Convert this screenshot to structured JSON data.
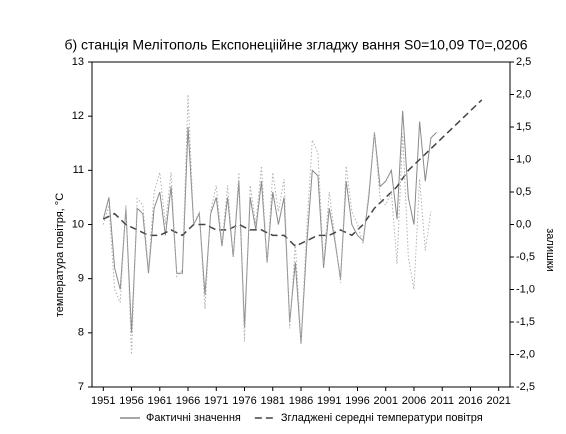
{
  "chart_data": {
    "type": "line",
    "title": "б) станція Мелітополь Експонеціійне згладжу вання   S0=10,09 T0=,0206",
    "ylabel": "температура повітря, °С",
    "y2label": "залишки",
    "xlim": [
      1949,
      2023
    ],
    "xticks": [
      1951,
      1956,
      1961,
      1966,
      1971,
      1976,
      1981,
      1986,
      1991,
      1996,
      2001,
      2006,
      2011,
      2016,
      2021
    ],
    "ylim": [
      7,
      13
    ],
    "yticks": [
      7,
      8,
      9,
      10,
      11,
      12,
      13
    ],
    "y2lim": [
      -2.5,
      2.5
    ],
    "y2ticks": [
      {
        "value": -2.5,
        "label": "-2,5"
      },
      {
        "value": -2,
        "label": "-2,0"
      },
      {
        "value": -1.5,
        "label": "-1,5"
      },
      {
        "value": -1,
        "label": "-1,0"
      },
      {
        "value": -0.5,
        "label": "-0,5"
      },
      {
        "value": 0,
        "label": "0,0"
      },
      {
        "value": 0.5,
        "label": "0,5"
      },
      {
        "value": 1,
        "label": "1,0"
      },
      {
        "value": 1.5,
        "label": "1,5"
      },
      {
        "value": 2,
        "label": "2,0"
      },
      {
        "value": 2.5,
        "label": "2,5"
      }
    ],
    "legend": "bottom",
    "series": [
      {
        "name": "Фактичні значення",
        "color": "#8a8a8a",
        "style": "solid",
        "x": [
          1951,
          1952,
          1953,
          1954,
          1955,
          1956,
          1957,
          1958,
          1959,
          1960,
          1961,
          1962,
          1963,
          1964,
          1965,
          1966,
          1967,
          1968,
          1969,
          1970,
          1971,
          1972,
          1973,
          1974,
          1975,
          1976,
          1977,
          1978,
          1979,
          1980,
          1981,
          1982,
          1983,
          1984,
          1985,
          1986,
          1987,
          1988,
          1989,
          1990,
          1991,
          1992,
          1993,
          1994,
          1995,
          1996,
          1997,
          1998,
          1999,
          2000,
          2001,
          2002,
          2003,
          2004,
          2005,
          2006,
          2007,
          2008,
          2009,
          2010
        ],
        "values": [
          10.1,
          10.5,
          9.2,
          8.8,
          10.3,
          8.0,
          10.3,
          10.2,
          9.1,
          10.3,
          10.6,
          9.8,
          10.7,
          9.1,
          9.1,
          11.8,
          10.0,
          10.2,
          8.7,
          10.2,
          10.5,
          9.6,
          10.5,
          9.4,
          10.8,
          8.1,
          10.5,
          9.9,
          10.8,
          9.3,
          10.6,
          10.0,
          10.5,
          8.2,
          9.3,
          7.8,
          9.6,
          11.0,
          10.9,
          9.2,
          10.3,
          9.7,
          9.0,
          10.8,
          10.0,
          9.8,
          9.7,
          10.5,
          11.7,
          10.7,
          10.8,
          11.0,
          10.1,
          12.1,
          10.5,
          10.0,
          11.9,
          10.8,
          11.6,
          11.7
        ]
      },
      {
        "name": "Згладжені середні температури повітря",
        "color": "#444444",
        "style": "dashed",
        "x": [
          1951,
          1953,
          1955,
          1957,
          1959,
          1961,
          1963,
          1965,
          1967,
          1969,
          1971,
          1973,
          1975,
          1977,
          1979,
          1981,
          1983,
          1985,
          1987,
          1989,
          1991,
          1993,
          1995,
          1997,
          1999,
          2001,
          2003,
          2005,
          2007,
          2009,
          2011,
          2013,
          2015,
          2017,
          2018
        ],
        "values": [
          10.1,
          10.2,
          10.0,
          9.9,
          9.8,
          9.8,
          9.9,
          9.8,
          10.0,
          10.0,
          9.9,
          9.9,
          10.0,
          9.9,
          9.9,
          9.8,
          9.8,
          9.6,
          9.7,
          9.8,
          9.8,
          9.9,
          9.8,
          10.0,
          10.3,
          10.5,
          10.7,
          11.0,
          11.2,
          11.4,
          11.6,
          11.8,
          12.0,
          12.2,
          12.3
        ]
      },
      {
        "color": "#b0b0b0",
        "style": "dotted",
        "axis": "y2",
        "x": [
          1951,
          1952,
          1953,
          1954,
          1955,
          1956,
          1957,
          1958,
          1959,
          1960,
          1961,
          1962,
          1963,
          1964,
          1965,
          1966,
          1967,
          1968,
          1969,
          1970,
          1971,
          1972,
          1973,
          1974,
          1975,
          1976,
          1977,
          1978,
          1979,
          1980,
          1981,
          1982,
          1983,
          1984,
          1985,
          1986,
          1987,
          1988,
          1989,
          1990,
          1991,
          1992,
          1993,
          1994,
          1995,
          1996,
          1997,
          1998,
          1999,
          2000,
          2001,
          2002,
          2003,
          2004,
          2005,
          2006,
          2007,
          2008,
          2009
        ],
        "values": [
          0.0,
          0.3,
          -1.0,
          -1.2,
          0.3,
          -2.0,
          0.4,
          0.3,
          -0.7,
          0.5,
          0.8,
          0.0,
          0.8,
          -0.8,
          -0.7,
          2.0,
          0.0,
          0.2,
          -1.3,
          0.2,
          0.6,
          -0.3,
          0.6,
          -0.5,
          0.8,
          -1.8,
          0.6,
          0.0,
          0.9,
          -0.6,
          0.8,
          0.2,
          0.7,
          -1.6,
          -0.3,
          -1.8,
          -0.1,
          1.3,
          1.1,
          -0.6,
          0.5,
          -0.2,
          -0.9,
          0.9,
          0.2,
          0.0,
          -0.3,
          0.5,
          1.4,
          0.4,
          0.3,
          0.5,
          -0.6,
          1.4,
          -0.5,
          -1.0,
          0.7,
          -0.4,
          0.2
        ]
      }
    ]
  }
}
